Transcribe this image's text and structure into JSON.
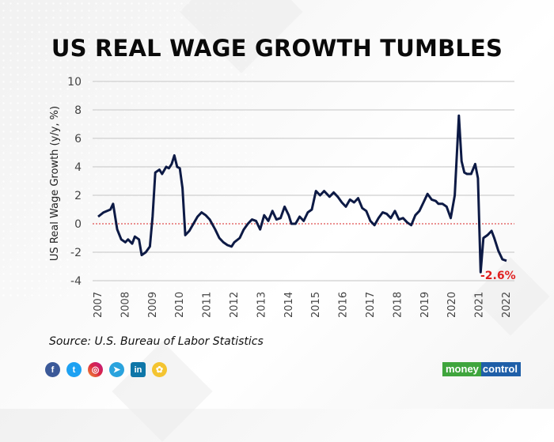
{
  "title": "US REAL WAGE GROWTH TUMBLES",
  "source": "Source: U.S. Bureau of Labor Statistics",
  "annotation": "-2.6%",
  "social_icons": [
    "facebook-icon",
    "twitter-icon",
    "instagram-icon",
    "telegram-icon",
    "linkedin-icon",
    "koo-icon"
  ],
  "brand": {
    "part1": "money",
    "part2": "control",
    "green": "#3fa53d",
    "blue": "#1f5fa8"
  },
  "colors": {
    "line": "#0d1a45",
    "zero_line": "#e05050",
    "annotation": "#e02020",
    "grid": "#cfcfcf"
  },
  "chart_data": {
    "type": "line",
    "title": "US REAL WAGE GROWTH TUMBLES",
    "xlabel": "",
    "ylabel": "US Real Wage Growth (y/y, %)",
    "ylim": [
      -4,
      10
    ],
    "yticks": [
      10,
      8,
      6,
      4,
      2,
      0,
      -2,
      -4
    ],
    "xticks": [
      "2007",
      "2008",
      "2009",
      "2010",
      "2011",
      "2012",
      "2013",
      "2014",
      "2015",
      "2016",
      "2017",
      "2018",
      "2019",
      "2020",
      "2021",
      "2022"
    ],
    "grid": true,
    "reference_line": {
      "y": 0,
      "style": "dashed",
      "color": "#e05050"
    },
    "annotation": {
      "x": 2021.9,
      "y": -2.6,
      "text": "-2.6%"
    },
    "series": [
      {
        "name": "US Real Wage Growth",
        "x": [
          2007.0,
          2007.2,
          2007.45,
          2007.55,
          2007.7,
          2007.85,
          2008.0,
          2008.1,
          2008.25,
          2008.35,
          2008.5,
          2008.6,
          2008.75,
          2008.9,
          2009.0,
          2009.1,
          2009.25,
          2009.35,
          2009.5,
          2009.6,
          2009.7,
          2009.8,
          2009.9,
          2010.0,
          2010.1,
          2010.2,
          2010.35,
          2010.5,
          2010.65,
          2010.8,
          2010.95,
          2011.1,
          2011.3,
          2011.45,
          2011.6,
          2011.75,
          2011.9,
          2012.0,
          2012.2,
          2012.35,
          2012.5,
          2012.65,
          2012.8,
          2012.95,
          2013.1,
          2013.25,
          2013.4,
          2013.55,
          2013.7,
          2013.85,
          2014.0,
          2014.1,
          2014.25,
          2014.4,
          2014.55,
          2014.7,
          2014.85,
          2015.0,
          2015.15,
          2015.3,
          2015.5,
          2015.65,
          2015.8,
          2015.95,
          2016.1,
          2016.25,
          2016.4,
          2016.55,
          2016.7,
          2016.85,
          2017.0,
          2017.15,
          2017.3,
          2017.45,
          2017.6,
          2017.75,
          2017.9,
          2018.05,
          2018.2,
          2018.35,
          2018.5,
          2018.65,
          2018.8,
          2018.95,
          2019.1,
          2019.25,
          2019.4,
          2019.5,
          2019.65,
          2019.8,
          2019.95,
          2020.1,
          2020.25,
          2020.35,
          2020.45,
          2020.55,
          2020.7,
          2020.85,
          2020.95,
          2021.05,
          2021.15,
          2021.3,
          2021.45,
          2021.55,
          2021.7,
          2021.85,
          2022.0
        ],
        "values": [
          0.5,
          0.8,
          1.0,
          1.4,
          -0.4,
          -1.1,
          -1.3,
          -1.1,
          -1.4,
          -0.9,
          -1.1,
          -2.2,
          -2.0,
          -1.6,
          0.5,
          3.6,
          3.8,
          3.5,
          4.0,
          3.9,
          4.2,
          4.8,
          4.0,
          3.9,
          2.5,
          -0.8,
          -0.5,
          0.0,
          0.5,
          0.8,
          0.6,
          0.3,
          -0.4,
          -1.0,
          -1.3,
          -1.5,
          -1.6,
          -1.3,
          -1.0,
          -0.4,
          0.0,
          0.3,
          0.2,
          -0.4,
          0.6,
          0.2,
          0.9,
          0.3,
          0.4,
          1.2,
          0.6,
          0.0,
          0.0,
          0.5,
          0.2,
          0.8,
          1.0,
          2.3,
          2.0,
          2.3,
          1.9,
          2.2,
          1.9,
          1.5,
          1.2,
          1.7,
          1.5,
          1.8,
          1.1,
          0.9,
          0.2,
          -0.1,
          0.4,
          0.8,
          0.7,
          0.4,
          0.9,
          0.3,
          0.4,
          0.1,
          -0.1,
          0.6,
          0.9,
          1.5,
          2.1,
          1.7,
          1.6,
          1.4,
          1.4,
          1.2,
          0.4,
          2.0,
          7.6,
          4.4,
          3.6,
          3.5,
          3.5,
          4.2,
          3.2,
          -3.4,
          -1.0,
          -0.8,
          -0.5,
          -1.0,
          -1.9,
          -2.5,
          -2.6
        ]
      }
    ]
  }
}
